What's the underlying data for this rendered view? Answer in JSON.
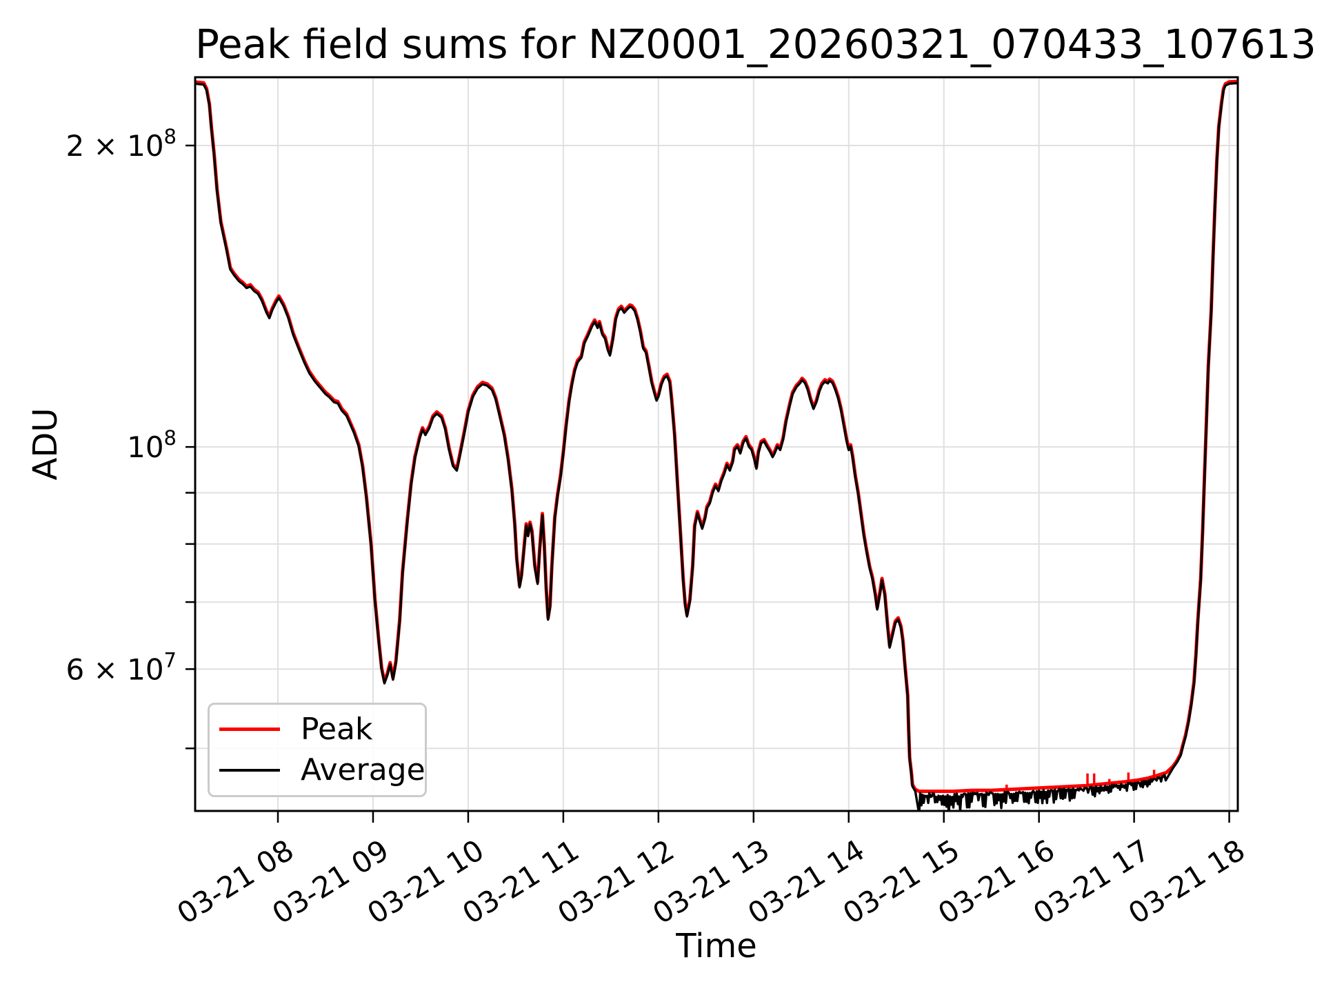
{
  "title": "Peak field sums for NZ0001_20260321_070433_107613",
  "axes": {
    "xlabel": "Time",
    "ylabel": "ADU"
  },
  "legend": {
    "items": [
      {
        "label": "Peak",
        "color": "#ff0000"
      },
      {
        "label": "Average",
        "color": "#000000"
      }
    ]
  },
  "colors": {
    "background": "#ffffff",
    "grid": "#e0e0e0",
    "spine": "#000000",
    "peak_line": "#ff0000",
    "average_line": "#000000"
  },
  "chart_data": {
    "type": "line",
    "title": "Peak field sums for NZ0001_20260321_070433_107613",
    "xlabel": "Time",
    "ylabel": "ADU",
    "yscale": "log",
    "grid": true,
    "legend_position": "lower left",
    "x_unit": "decimal hours on 2026-03-21",
    "value_scale": 1000000,
    "xlim": [
      7.13,
      18.09
    ],
    "ylim": [
      43300000,
      234000000
    ],
    "x_ticks": [
      {
        "h": 8,
        "label": "03-21 08"
      },
      {
        "h": 9,
        "label": "03-21 09"
      },
      {
        "h": 10,
        "label": "03-21 10"
      },
      {
        "h": 11,
        "label": "03-21 11"
      },
      {
        "h": 12,
        "label": "03-21 12"
      },
      {
        "h": 13,
        "label": "03-21 13"
      },
      {
        "h": 14,
        "label": "03-21 14"
      },
      {
        "h": 15,
        "label": "03-21 15"
      },
      {
        "h": 16,
        "label": "03-21 16"
      },
      {
        "h": 17,
        "label": "03-21 17"
      },
      {
        "h": 18,
        "label": "03-21 18"
      }
    ],
    "y_ticks": [
      {
        "value": 200000000,
        "base": "2 × 10",
        "exp": "8"
      },
      {
        "value": 100000000,
        "base": "10",
        "exp": "8"
      },
      {
        "value": 60000000,
        "base": "6 × 10",
        "exp": "7"
      }
    ],
    "y_gridlines": [
      200000000,
      100000000,
      90000000,
      80000000,
      70000000,
      60000000,
      50000000
    ],
    "series": [
      {
        "name": "Peak",
        "color": "#ff0000",
        "points": [
          [
            7.13,
            231.5
          ],
          [
            7.22,
            231
          ],
          [
            7.25,
            228
          ],
          [
            7.28,
            220
          ],
          [
            7.3,
            209
          ],
          [
            7.33,
            196
          ],
          [
            7.36,
            181
          ],
          [
            7.4,
            168
          ],
          [
            7.46,
            158
          ],
          [
            7.5,
            151
          ],
          [
            7.54,
            149
          ],
          [
            7.59,
            147
          ],
          [
            7.63,
            146
          ],
          [
            7.67,
            144.7
          ],
          [
            7.71,
            145.2
          ],
          [
            7.75,
            143.7
          ],
          [
            7.79,
            142.8
          ],
          [
            7.83,
            140.6
          ],
          [
            7.88,
            136.7
          ],
          [
            7.91,
            135
          ],
          [
            7.94,
            137.5
          ],
          [
            7.98,
            140
          ],
          [
            8.01,
            141.5
          ],
          [
            8.06,
            138.8
          ],
          [
            8.11,
            135
          ],
          [
            8.16,
            130
          ],
          [
            8.22,
            125.7
          ],
          [
            8.28,
            121.8
          ],
          [
            8.33,
            119
          ],
          [
            8.39,
            116.7
          ],
          [
            8.45,
            114.9
          ],
          [
            8.5,
            113.4
          ],
          [
            8.54,
            112.6
          ],
          [
            8.59,
            111.3
          ],
          [
            8.63,
            111
          ],
          [
            8.67,
            109.2
          ],
          [
            8.72,
            107.9
          ],
          [
            8.76,
            105.8
          ],
          [
            8.8,
            103.7
          ],
          [
            8.85,
            100.5
          ],
          [
            8.89,
            95.8
          ],
          [
            8.93,
            89.3
          ],
          [
            8.98,
            79.9
          ],
          [
            9.02,
            70.5
          ],
          [
            9.06,
            64.1
          ],
          [
            9.09,
            60.2
          ],
          [
            9.12,
            58.3
          ],
          [
            9.15,
            59.4
          ],
          [
            9.18,
            60.9
          ],
          [
            9.21,
            58.8
          ],
          [
            9.24,
            61.1
          ],
          [
            9.28,
            67.2
          ],
          [
            9.31,
            75
          ],
          [
            9.36,
            84.5
          ],
          [
            9.4,
            92.1
          ],
          [
            9.44,
            97.8
          ],
          [
            9.49,
            102.4
          ],
          [
            9.52,
            104.5
          ],
          [
            9.55,
            103.2
          ],
          [
            9.59,
            104.8
          ],
          [
            9.63,
            107.4
          ],
          [
            9.67,
            108.4
          ],
          [
            9.72,
            107.4
          ],
          [
            9.76,
            104.5
          ],
          [
            9.8,
            99.7
          ],
          [
            9.84,
            96.1
          ],
          [
            9.88,
            95.1
          ],
          [
            9.91,
            98.1
          ],
          [
            9.96,
            103.7
          ],
          [
            10.0,
            108.7
          ],
          [
            10.05,
            112.7
          ],
          [
            10.1,
            114.9
          ],
          [
            10.15,
            116
          ],
          [
            10.2,
            115.6
          ],
          [
            10.25,
            114.5
          ],
          [
            10.29,
            112
          ],
          [
            10.33,
            107.9
          ],
          [
            10.38,
            102.9
          ],
          [
            10.42,
            97.4
          ],
          [
            10.46,
            90.7
          ],
          [
            10.49,
            83.8
          ],
          [
            10.51,
            77.5
          ],
          [
            10.54,
            72.7
          ],
          [
            10.56,
            74.5
          ],
          [
            10.59,
            79.9
          ],
          [
            10.61,
            83.8
          ],
          [
            10.63,
            81.8
          ],
          [
            10.65,
            84.1
          ],
          [
            10.67,
            82.5
          ],
          [
            10.7,
            76.2
          ],
          [
            10.73,
            73.3
          ],
          [
            10.75,
            78.7
          ],
          [
            10.78,
            85.8
          ],
          [
            10.8,
            79.9
          ],
          [
            10.82,
            72.2
          ],
          [
            10.84,
            67.5
          ],
          [
            10.86,
            69.4
          ],
          [
            10.88,
            76.2
          ],
          [
            10.91,
            85.1
          ],
          [
            10.94,
            89.7
          ],
          [
            10.97,
            93.6
          ],
          [
            11.0,
            98.9
          ],
          [
            11.03,
            105.3
          ],
          [
            11.06,
            111.3
          ],
          [
            11.09,
            115.8
          ],
          [
            11.12,
            119.5
          ],
          [
            11.15,
            122
          ],
          [
            11.19,
            123.3
          ],
          [
            11.22,
            127.3
          ],
          [
            11.26,
            129.7
          ],
          [
            11.3,
            132.4
          ],
          [
            11.33,
            133.9
          ],
          [
            11.36,
            132
          ],
          [
            11.38,
            133.4
          ],
          [
            11.41,
            130
          ],
          [
            11.44,
            128.7
          ],
          [
            11.47,
            125.3
          ],
          [
            11.49,
            123.9
          ],
          [
            11.52,
            128.3
          ],
          [
            11.55,
            134.5
          ],
          [
            11.58,
            137.3
          ],
          [
            11.61,
            138.2
          ],
          [
            11.64,
            136.7
          ],
          [
            11.67,
            137.7
          ],
          [
            11.7,
            138.6
          ],
          [
            11.72,
            138.4
          ],
          [
            11.75,
            137.3
          ],
          [
            11.78,
            134.5
          ],
          [
            11.81,
            130.7
          ],
          [
            11.84,
            125.9
          ],
          [
            11.87,
            124.7
          ],
          [
            11.9,
            120.4
          ],
          [
            11.93,
            116.2
          ],
          [
            11.96,
            113.4
          ],
          [
            11.98,
            111.7
          ],
          [
            12.0,
            112.7
          ],
          [
            12.03,
            115.8
          ],
          [
            12.06,
            117.6
          ],
          [
            12.09,
            118.2
          ],
          [
            12.12,
            116.3
          ],
          [
            12.14,
            111.3
          ],
          [
            12.17,
            102.9
          ],
          [
            12.2,
            92.1
          ],
          [
            12.23,
            82.5
          ],
          [
            12.26,
            73.9
          ],
          [
            12.28,
            69.9
          ],
          [
            12.3,
            68
          ],
          [
            12.33,
            70.4
          ],
          [
            12.36,
            76.2
          ],
          [
            12.38,
            83.5
          ],
          [
            12.41,
            86.2
          ],
          [
            12.43,
            84.9
          ],
          [
            12.46,
            83.2
          ],
          [
            12.49,
            85.1
          ],
          [
            12.51,
            87.2
          ],
          [
            12.54,
            88.2
          ],
          [
            12.57,
            90.4
          ],
          [
            12.6,
            91.8
          ],
          [
            12.63,
            90.7
          ],
          [
            12.66,
            92.8
          ],
          [
            12.69,
            94.3
          ],
          [
            12.72,
            96.3
          ],
          [
            12.75,
            95.1
          ],
          [
            12.78,
            96.9
          ],
          [
            12.8,
            99.7
          ],
          [
            12.83,
            100.5
          ],
          [
            12.86,
            98.9
          ],
          [
            12.89,
            101.3
          ],
          [
            12.92,
            102.4
          ],
          [
            12.95,
            100.5
          ],
          [
            12.98,
            99.7
          ],
          [
            13.01,
            97.4
          ],
          [
            13.03,
            95.5
          ],
          [
            13.05,
            98.9
          ],
          [
            13.08,
            101.3
          ],
          [
            13.11,
            101.7
          ],
          [
            13.14,
            100.5
          ],
          [
            13.17,
            99.4
          ],
          [
            13.2,
            98.1
          ],
          [
            13.22,
            98.9
          ],
          [
            13.25,
            100.5
          ],
          [
            13.28,
            99.7
          ],
          [
            13.31,
            102.1
          ],
          [
            13.34,
            106.2
          ],
          [
            13.38,
            110.4
          ],
          [
            13.41,
            113.4
          ],
          [
            13.45,
            115.2
          ],
          [
            13.49,
            116.3
          ],
          [
            13.51,
            117.1
          ],
          [
            13.54,
            116.3
          ],
          [
            13.57,
            114.5
          ],
          [
            13.6,
            111.7
          ],
          [
            13.63,
            109.6
          ],
          [
            13.66,
            111.3
          ],
          [
            13.69,
            114
          ],
          [
            13.72,
            115.8
          ],
          [
            13.75,
            116.7
          ],
          [
            13.78,
            116.2
          ],
          [
            13.8,
            116.9
          ],
          [
            13.83,
            116.3
          ],
          [
            13.86,
            114.5
          ],
          [
            13.89,
            112.2
          ],
          [
            13.92,
            109.2
          ],
          [
            13.95,
            105.3
          ],
          [
            13.98,
            101.6
          ],
          [
            14.0,
            99.7
          ],
          [
            14.02,
            100.5
          ],
          [
            14.04,
            98.1
          ],
          [
            14.07,
            93.6
          ],
          [
            14.1,
            90
          ],
          [
            14.13,
            85.8
          ],
          [
            14.16,
            81.8
          ],
          [
            14.19,
            78.7
          ],
          [
            14.22,
            76
          ],
          [
            14.25,
            74.1
          ],
          [
            14.28,
            71.3
          ],
          [
            14.3,
            69.1
          ],
          [
            14.33,
            71.8
          ],
          [
            14.35,
            73.9
          ],
          [
            14.38,
            71.3
          ],
          [
            14.41,
            66.2
          ],
          [
            14.43,
            63.3
          ],
          [
            14.46,
            65.1
          ],
          [
            14.49,
            67
          ],
          [
            14.52,
            67.5
          ],
          [
            14.55,
            66.2
          ],
          [
            14.57,
            64.1
          ],
          [
            14.59,
            60.7
          ],
          [
            14.62,
            56.5
          ],
          [
            14.63,
            52.2
          ],
          [
            14.64,
            49
          ],
          [
            14.66,
            47.2
          ],
          [
            14.67,
            46
          ],
          [
            14.7,
            45.5
          ],
          [
            14.74,
            45.3
          ],
          [
            14.9,
            45.3
          ],
          [
            15.1,
            45.3
          ],
          [
            15.3,
            45.4
          ],
          [
            15.5,
            45.4
          ],
          [
            15.7,
            45.5
          ],
          [
            15.9,
            45.6
          ],
          [
            16.1,
            45.7
          ],
          [
            16.3,
            45.8
          ],
          [
            16.5,
            45.9
          ],
          [
            16.7,
            46.1
          ],
          [
            16.9,
            46.3
          ],
          [
            17.05,
            46.5
          ],
          [
            17.15,
            46.7
          ],
          [
            17.25,
            47
          ],
          [
            17.34,
            47.3
          ],
          [
            17.41,
            48
          ],
          [
            17.45,
            48.6
          ],
          [
            17.49,
            49.4
          ],
          [
            17.51,
            50.3
          ],
          [
            17.54,
            51.5
          ],
          [
            17.57,
            53.2
          ],
          [
            17.6,
            55.4
          ],
          [
            17.63,
            58.3
          ],
          [
            17.65,
            62.1
          ],
          [
            17.67,
            67.2
          ],
          [
            17.7,
            73.9
          ],
          [
            17.72,
            82.5
          ],
          [
            17.74,
            93.6
          ],
          [
            17.76,
            106.2
          ],
          [
            17.78,
            120.4
          ],
          [
            17.81,
            136.7
          ],
          [
            17.83,
            155.1
          ],
          [
            17.85,
            174.5
          ],
          [
            17.87,
            193.3
          ],
          [
            17.89,
            209
          ],
          [
            17.92,
            221
          ],
          [
            17.94,
            228
          ],
          [
            17.96,
            230.5
          ],
          [
            18.0,
            231.5
          ],
          [
            18.09,
            231.8
          ]
        ],
        "spikes": [
          [
            15.66,
            46.0
          ],
          [
            16.51,
            47.2
          ],
          [
            16.58,
            47.2
          ],
          [
            16.74,
            46.6
          ],
          [
            16.94,
            47.3
          ],
          [
            17.21,
            47.6
          ]
        ]
      },
      {
        "name": "Average",
        "color": "#000000",
        "derived": {
          "from": "Peak",
          "scale": 0.996,
          "floor_noise": {
            "t_start": 14.74,
            "t_end": 17.34,
            "step_hours": 0.012,
            "amp_start": 0.05,
            "amp_end": 0.015
          }
        }
      }
    ]
  }
}
